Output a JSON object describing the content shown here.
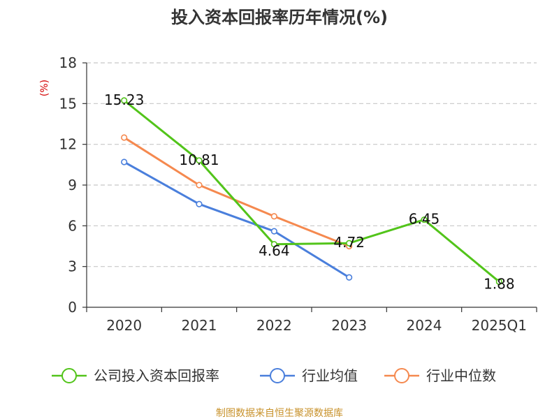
{
  "chart_data": {
    "type": "line",
    "title": "投入资本回报率历年情况(%)",
    "ylabel": "(%)",
    "xlabel": "",
    "categories": [
      "2020",
      "2021",
      "2022",
      "2023",
      "2024",
      "2025Q1"
    ],
    "ylim": [
      0,
      18
    ],
    "yticks": [
      0,
      3,
      6,
      9,
      12,
      15,
      18
    ],
    "grid": true,
    "legend_position": "bottom",
    "series": [
      {
        "name": "公司投入资本回报率",
        "color": "#52c41a",
        "values": [
          15.23,
          10.81,
          4.64,
          4.72,
          6.45,
          1.88
        ],
        "labels": [
          "15.23",
          "10.81",
          "4.64",
          "4.72",
          "6.45",
          "1.88"
        ]
      },
      {
        "name": "行业均值",
        "color": "#4a7fdc",
        "values": [
          10.7,
          7.6,
          5.6,
          2.2,
          null,
          null
        ]
      },
      {
        "name": "行业中位数",
        "color": "#f5894f",
        "values": [
          12.5,
          9.0,
          6.7,
          4.5,
          null,
          null
        ]
      }
    ]
  },
  "source": {
    "text": "制图数据来自恒生聚源数据库",
    "color": "#c8922b"
  },
  "ylabel_color": "#d40000"
}
